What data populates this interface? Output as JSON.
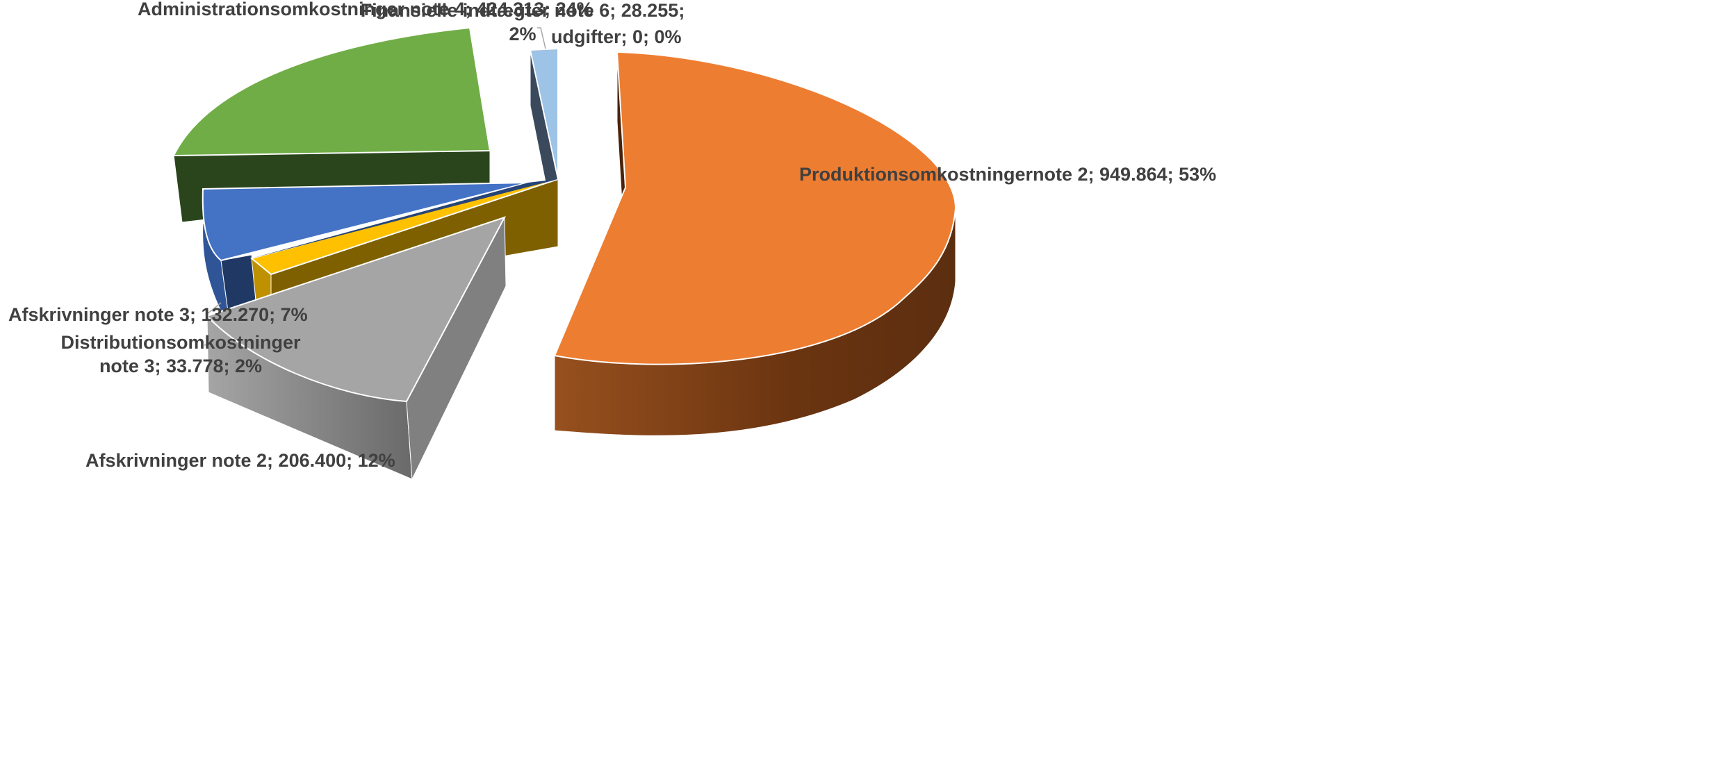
{
  "chart_data": {
    "type": "pie",
    "title": "",
    "series": [
      {
        "name": "",
        "points": [
          {
            "label_lines": [
              "Produktionsomkostningernote 2; 949.864; 53%"
            ],
            "value": 949864,
            "percent": 53,
            "color": "#ED7D31",
            "side": "#7A3B12"
          },
          {
            "label_lines": [
              "Afskrivninger note 2; 206.400; 12%"
            ],
            "value": 206400,
            "percent": 12,
            "color": "#A5A5A5",
            "side": "#777777"
          },
          {
            "label_lines": [
              "Distributionsomkostninger",
              "note 3; 33.778; 2%"
            ],
            "value": 33778,
            "percent": 2,
            "color": "#FFC000",
            "side": "#7F6000"
          },
          {
            "label_lines": [
              "Afskrivninger note 3; 132.270; 7%"
            ],
            "value": 132270,
            "percent": 7,
            "color": "#4472C4",
            "side": "#1F3864"
          },
          {
            "label_lines": [
              "Administrationsomkostninger note 4; 424.313; 24%"
            ],
            "value": 424313,
            "percent": 24,
            "color": "#70AD47",
            "side": "#2A451C"
          },
          {
            "label_lines": [
              "Finansielle indtægter note 6; 28.255;",
              "2%"
            ],
            "value": 28255,
            "percent": 2,
            "color": "#9DC3E6",
            "side": "#3A4A5C"
          },
          {
            "label_lines": [
              "udgifter; 0; 0%"
            ],
            "value": 0,
            "percent": 0,
            "color": "#264478",
            "side": "#1A2E50"
          }
        ]
      }
    ],
    "legend": "none",
    "style": "3d-exploded"
  }
}
